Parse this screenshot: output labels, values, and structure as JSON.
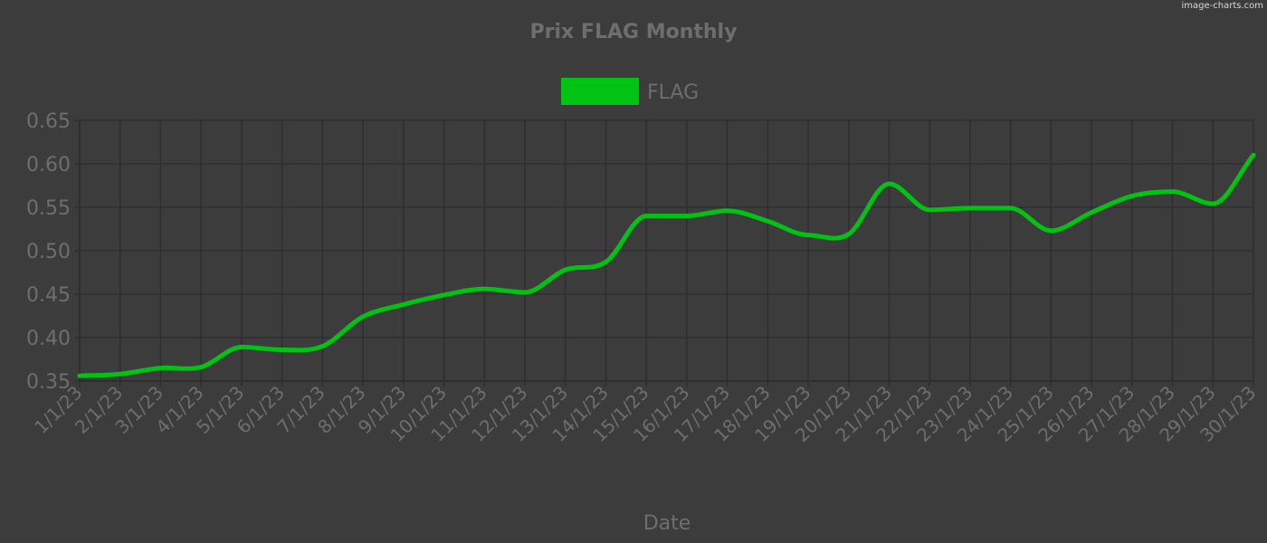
{
  "watermark": "image-charts.com",
  "colors": {
    "background": "#3c3c3c",
    "grid": "#2e2e2e",
    "text": "#6e6e6e",
    "series": "#00c313"
  },
  "chart_data": {
    "type": "line",
    "title": "Prix FLAG Monthly",
    "xlabel": "Date",
    "ylabel": "",
    "ylim": [
      0.35,
      0.65
    ],
    "yticks": [
      "0.35",
      "0.40",
      "0.45",
      "0.50",
      "0.55",
      "0.60",
      "0.65"
    ],
    "grid": true,
    "legend_position": "top",
    "categories": [
      "1/1/23",
      "2/1/23",
      "3/1/23",
      "4/1/23",
      "5/1/23",
      "6/1/23",
      "7/1/23",
      "8/1/23",
      "9/1/23",
      "10/1/23",
      "11/1/23",
      "12/1/23",
      "13/1/23",
      "14/1/23",
      "15/1/23",
      "16/1/23",
      "17/1/23",
      "18/1/23",
      "19/1/23",
      "20/1/23",
      "21/1/23",
      "22/1/23",
      "23/1/23",
      "24/1/23",
      "25/1/23",
      "26/1/23",
      "27/1/23",
      "28/1/23",
      "29/1/23",
      "30/1/23"
    ],
    "series": [
      {
        "name": "FLAG",
        "color": "#00c313",
        "values": [
          0.356,
          0.358,
          0.365,
          0.366,
          0.389,
          0.386,
          0.39,
          0.424,
          0.438,
          0.449,
          0.456,
          0.452,
          0.478,
          0.487,
          0.54,
          0.54,
          0.546,
          0.534,
          0.518,
          0.519,
          0.577,
          0.547,
          0.549,
          0.549,
          0.523,
          0.544,
          0.563,
          0.568,
          0.554,
          0.61
        ]
      }
    ]
  }
}
